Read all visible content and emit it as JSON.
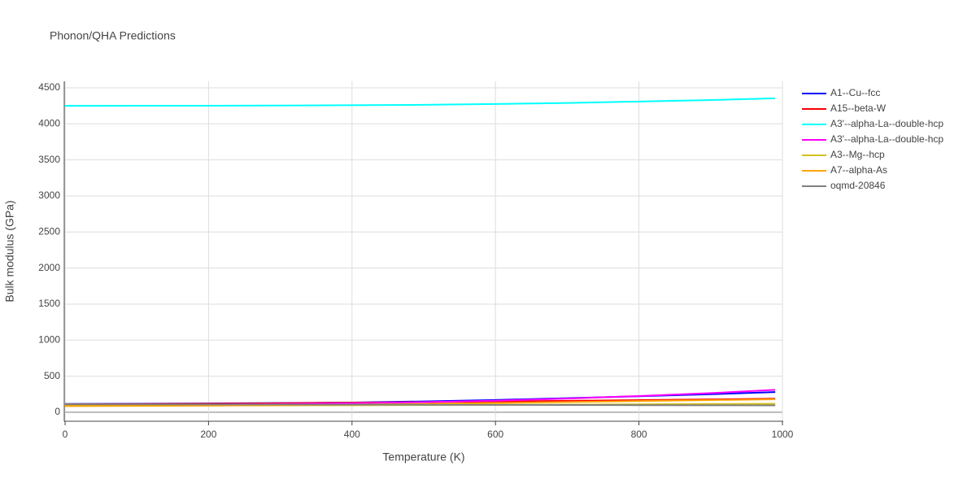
{
  "chart_data": {
    "type": "line",
    "title": "Phonon/QHA Predictions",
    "x_label": "Temperature (K)",
    "y_label": "Bulk modulus (GPa)",
    "x": [
      0,
      100,
      200,
      300,
      400,
      500,
      600,
      700,
      800,
      900,
      990
    ],
    "series": [
      {
        "name": "A1--Cu--fcc",
        "color": "#0000ff",
        "values": [
          115,
          118,
          122,
          127,
          135,
          150,
          170,
          195,
          222,
          250,
          280
        ]
      },
      {
        "name": "A15--beta-W",
        "color": "#ff0000",
        "values": [
          110,
          113,
          118,
          125,
          133,
          140,
          148,
          158,
          168,
          178,
          188
        ]
      },
      {
        "name": "A3'--alpha-La--double-hcp",
        "color": "#00ffff",
        "values": [
          4250,
          4251,
          4252,
          4255,
          4258,
          4264,
          4275,
          4290,
          4310,
          4330,
          4355
        ]
      },
      {
        "name": "A3'--alpha-La--double-hcp",
        "color": "#ff00ff",
        "values": [
          100,
          103,
          108,
          115,
          125,
          140,
          160,
          190,
          225,
          265,
          310
        ]
      },
      {
        "name": "A3--Mg--hcp",
        "color": "#d4c21a",
        "values": [
          90,
          91,
          93,
          95,
          97,
          100,
          103,
          106,
          110,
          114,
          118
        ]
      },
      {
        "name": "A7--alpha-As",
        "color": "#ffa500",
        "values": [
          85,
          88,
          92,
          98,
          106,
          116,
          128,
          142,
          155,
          168,
          180
        ]
      },
      {
        "name": "oqmd-20846",
        "color": "#808080",
        "values": [
          110,
          109,
          108,
          107,
          106,
          104,
          102,
          100,
          98,
          96,
          95
        ]
      }
    ],
    "xlim": [
      0,
      1000
    ],
    "xticks": [
      0,
      200,
      400,
      600,
      800,
      1000
    ],
    "ylim": [
      -125,
      4590
    ],
    "yticks": [
      0,
      500,
      1000,
      1500,
      2000,
      2500,
      3000,
      3500,
      4000,
      4500
    ],
    "grid": true,
    "legend": "right"
  }
}
